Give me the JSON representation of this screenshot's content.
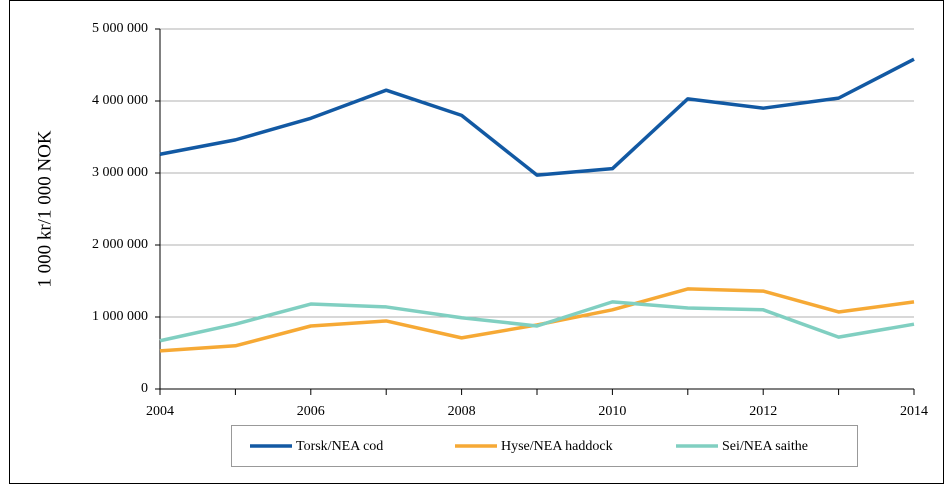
{
  "chart_data": {
    "type": "line",
    "y_label": "1 000 kr/1 000 NOK",
    "x": [
      2004,
      2005,
      2006,
      2007,
      2008,
      2009,
      2010,
      2011,
      2012,
      2013,
      2014
    ],
    "xlim": [
      2004,
      2014
    ],
    "xticks": [
      2004,
      2006,
      2008,
      2010,
      2012,
      2014
    ],
    "ylim": [
      0,
      5000000
    ],
    "yticks": [
      {
        "value": 0,
        "label": "0"
      },
      {
        "value": 1000000,
        "label": "1 000 000"
      },
      {
        "value": 2000000,
        "label": "2 000 000"
      },
      {
        "value": 3000000,
        "label": "3 000 000"
      },
      {
        "value": 4000000,
        "label": "4 000 000"
      },
      {
        "value": 5000000,
        "label": "5 000 000"
      }
    ],
    "grid": true,
    "legend": "bottom",
    "series": [
      {
        "name": "Torsk/NEA cod",
        "color": "#1259a3",
        "values": [
          3260000,
          3460000,
          3760000,
          4150000,
          3800000,
          2970000,
          3060000,
          4030000,
          3900000,
          4040000,
          4580000
        ]
      },
      {
        "name": "Hyse/NEA haddock",
        "color": "#f6a935",
        "values": [
          530000,
          600000,
          875000,
          945000,
          710000,
          890000,
          1100000,
          1390000,
          1360000,
          1070000,
          1210000
        ]
      },
      {
        "name": "Sei/NEA saithe",
        "color": "#80cfc1",
        "values": [
          670000,
          900000,
          1180000,
          1140000,
          990000,
          875000,
          1210000,
          1125000,
          1100000,
          720000,
          900000
        ]
      }
    ]
  }
}
